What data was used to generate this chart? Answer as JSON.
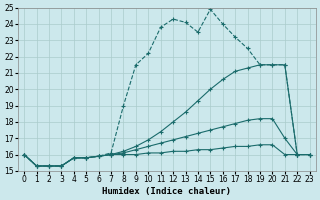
{
  "xlabel": "Humidex (Indice chaleur)",
  "xlim": [
    -0.5,
    23.5
  ],
  "ylim": [
    15,
    25
  ],
  "xticks": [
    0,
    1,
    2,
    3,
    4,
    5,
    6,
    7,
    8,
    9,
    10,
    11,
    12,
    13,
    14,
    15,
    16,
    17,
    18,
    19,
    20,
    21,
    22,
    23
  ],
  "yticks": [
    15,
    16,
    17,
    18,
    19,
    20,
    21,
    22,
    23,
    24,
    25
  ],
  "bg_color": "#cce8ec",
  "line_color": "#1a6b6b",
  "grid_color": "#aacccc",
  "lines": [
    {
      "x": [
        0,
        1,
        2,
        3,
        4,
        5,
        6,
        7,
        8,
        9,
        10,
        11,
        12,
        13,
        14,
        15,
        16,
        17,
        18,
        19,
        20,
        21,
        22,
        23
      ],
      "y": [
        16,
        15.3,
        15.3,
        15.3,
        15.8,
        15.8,
        15.9,
        16.0,
        16.0,
        16.0,
        16.1,
        16.1,
        16.2,
        16.2,
        16.3,
        16.3,
        16.4,
        16.5,
        16.5,
        16.6,
        16.6,
        16.0,
        16.0,
        16.0
      ],
      "style": "-",
      "marker": "+"
    },
    {
      "x": [
        0,
        1,
        2,
        3,
        4,
        5,
        6,
        7,
        8,
        9,
        10,
        11,
        12,
        13,
        14,
        15,
        16,
        17,
        18,
        19,
        20,
        21,
        22,
        23
      ],
      "y": [
        16,
        15.3,
        15.3,
        15.3,
        15.8,
        15.8,
        15.9,
        16.0,
        16.1,
        16.3,
        16.5,
        16.7,
        16.9,
        17.1,
        17.3,
        17.5,
        17.7,
        17.9,
        18.1,
        18.2,
        18.2,
        17.0,
        16.0,
        16.0
      ],
      "style": "-",
      "marker": "+"
    },
    {
      "x": [
        0,
        1,
        2,
        3,
        4,
        5,
        6,
        7,
        8,
        9,
        10,
        11,
        12,
        13,
        14,
        15,
        16,
        17,
        18,
        19,
        20,
        21,
        22,
        23
      ],
      "y": [
        16,
        15.3,
        15.3,
        15.3,
        15.8,
        15.8,
        15.9,
        16.0,
        16.2,
        16.5,
        16.9,
        17.4,
        18.0,
        18.6,
        19.3,
        20.0,
        20.6,
        21.1,
        21.3,
        21.5,
        21.5,
        21.5,
        16.0,
        16.0
      ],
      "style": "-",
      "marker": "+"
    },
    {
      "x": [
        0,
        1,
        2,
        3,
        4,
        5,
        6,
        7,
        8,
        9,
        10,
        11,
        12,
        13,
        14,
        15,
        16,
        17,
        18,
        19,
        20,
        21,
        22,
        23
      ],
      "y": [
        16,
        15.3,
        15.3,
        15.3,
        15.8,
        15.8,
        15.9,
        16.1,
        19.0,
        21.5,
        22.2,
        23.8,
        24.3,
        24.1,
        23.5,
        24.9,
        24.0,
        23.2,
        22.5,
        21.5,
        21.5,
        21.5,
        16.0,
        16.0
      ],
      "style": "--",
      "marker": "+"
    }
  ]
}
